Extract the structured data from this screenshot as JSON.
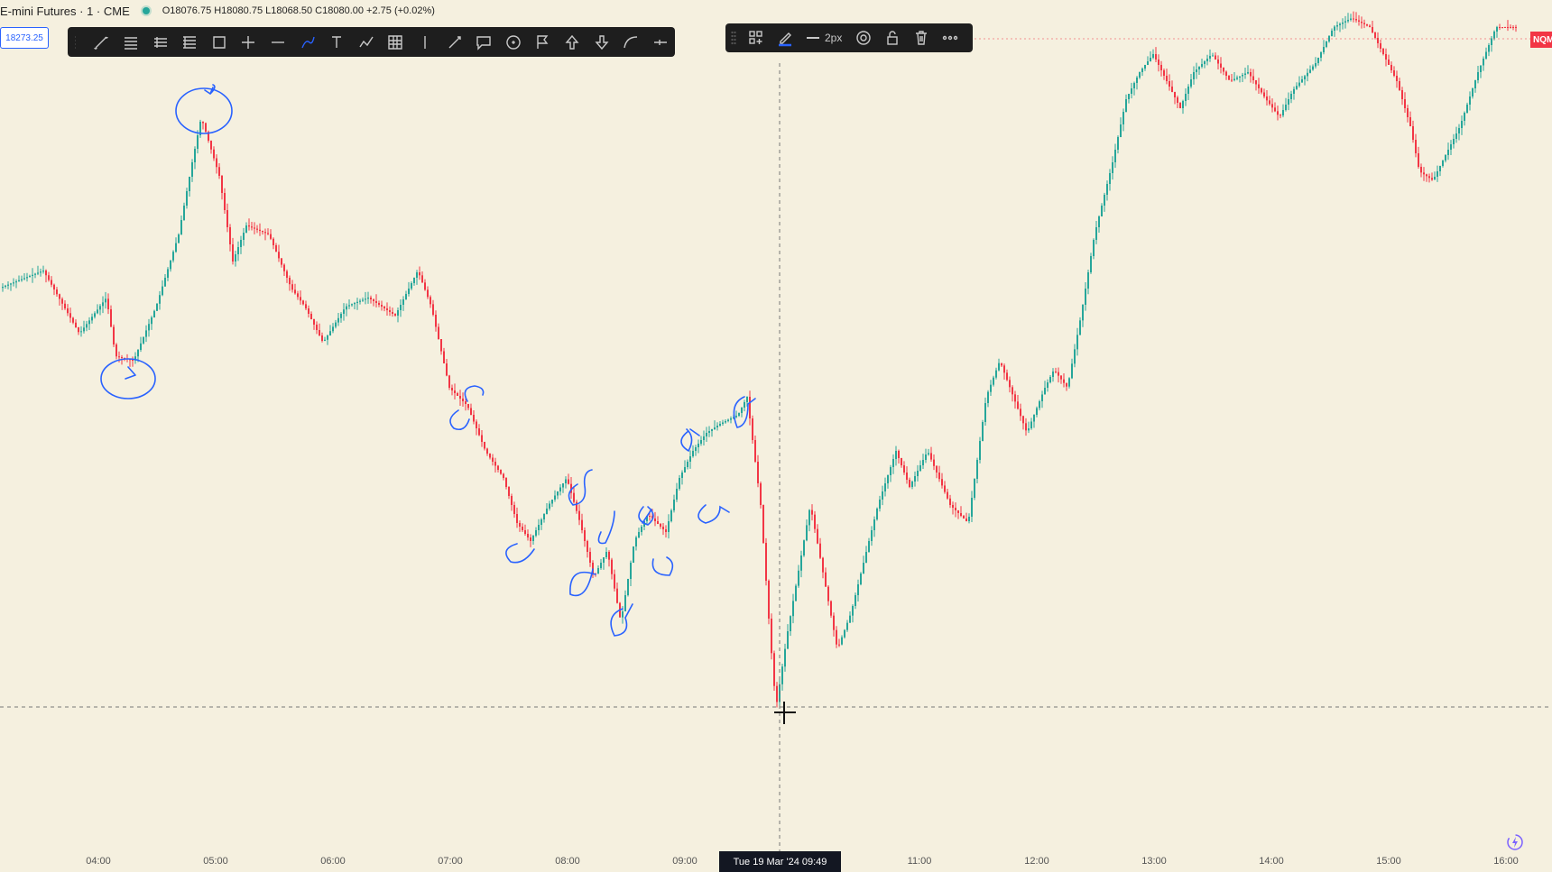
{
  "header": {
    "title": "E-mini Futures · 1 · CME",
    "ohlc": "O18076.75 H18080.75 L18068.50 C18080.00 +2.75 (+0.02%)"
  },
  "price_tag": "18273.25",
  "symbol_badge": "NQM",
  "toolbar": {
    "tools": [
      {
        "name": "trend-line-icon"
      },
      {
        "name": "horizontal-lines-icon"
      },
      {
        "name": "pitchfork-icon"
      },
      {
        "name": "fib-retracement-icon"
      },
      {
        "name": "rectangle-icon"
      },
      {
        "name": "crosshair-tool-icon"
      },
      {
        "name": "horizontal-line-icon"
      },
      {
        "name": "brush-icon",
        "active": true
      },
      {
        "name": "text-icon"
      },
      {
        "name": "path-icon"
      },
      {
        "name": "grid-icon"
      },
      {
        "name": "vertical-line-icon"
      },
      {
        "name": "measure-icon"
      },
      {
        "name": "callout-icon"
      },
      {
        "name": "circle-icon"
      },
      {
        "name": "flag-icon"
      },
      {
        "name": "arrow-up-icon"
      },
      {
        "name": "arrow-down-icon"
      },
      {
        "name": "curve-icon"
      },
      {
        "name": "more-lines-icon"
      }
    ]
  },
  "drawing_toolbar": {
    "width_label": "2px",
    "accent": "#2962ff"
  },
  "crosshair_label": "Tue 19 Mar '24   09:49",
  "time_axis": [
    "04:00",
    "05:00",
    "06:00",
    "07:00",
    "08:00",
    "09:00",
    "11:00",
    "12:00",
    "13:00",
    "14:00",
    "15:00",
    "16:00"
  ],
  "colors": {
    "background": "#f5f0df",
    "up": "#26a69a",
    "down": "#f23645",
    "annotation": "#2962ff"
  }
}
